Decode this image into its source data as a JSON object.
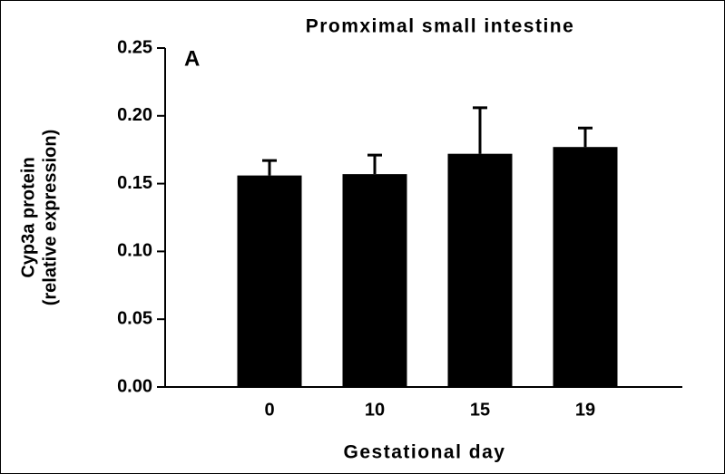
{
  "chart_data": {
    "type": "bar",
    "title": "Promximal small intestine",
    "annotation": "A",
    "ylabel": [
      "Cyp3a protein",
      "(relative expression)"
    ],
    "xlabel": "Gestational day",
    "categories": [
      "0",
      "10",
      "15",
      "19"
    ],
    "values": [
      0.156,
      0.157,
      0.172,
      0.177
    ],
    "errors": [
      0.011,
      0.014,
      0.034,
      0.014
    ],
    "color": "#000000",
    "ylim": [
      0,
      0.25
    ],
    "yticks": [
      {
        "value": 0,
        "label": "0.00"
      },
      {
        "value": 0.05,
        "label": "0.05"
      },
      {
        "value": 0.1,
        "label": "0.10"
      },
      {
        "value": 0.15,
        "label": "0.15"
      },
      {
        "value": 0.2,
        "label": "0.20"
      },
      {
        "value": 0.25,
        "label": "0.25"
      }
    ],
    "grid": false
  }
}
